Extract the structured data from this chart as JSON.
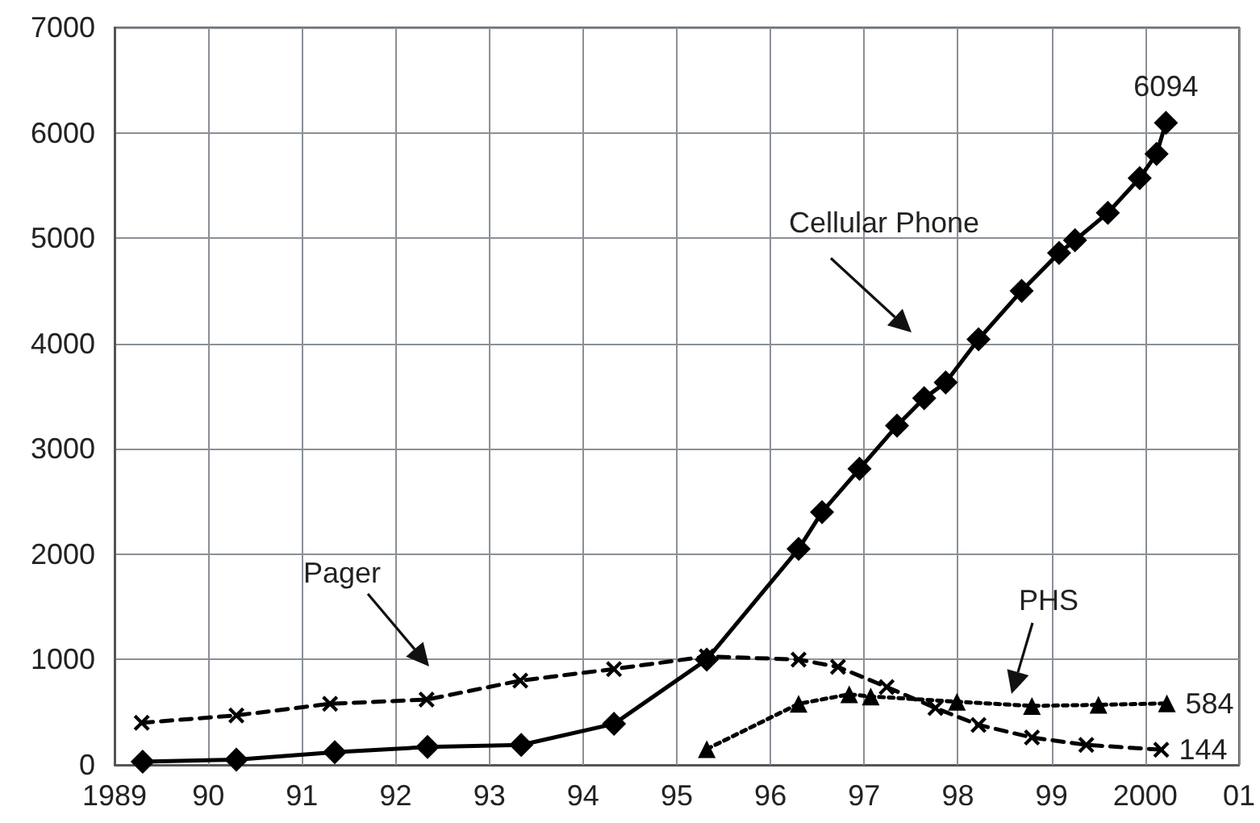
{
  "chart_data": {
    "type": "line",
    "xlim": [
      1989,
      2001
    ],
    "xticks": [
      {
        "value": 1989,
        "label": "1989"
      },
      {
        "value": 1990,
        "label": "90"
      },
      {
        "value": 1991,
        "label": "91"
      },
      {
        "value": 1992,
        "label": "92"
      },
      {
        "value": 1993,
        "label": "93"
      },
      {
        "value": 1994,
        "label": "94"
      },
      {
        "value": 1995,
        "label": "95"
      },
      {
        "value": 1996,
        "label": "96"
      },
      {
        "value": 1997,
        "label": "97"
      },
      {
        "value": 1998,
        "label": "98"
      },
      {
        "value": 1999,
        "label": "99"
      },
      {
        "value": 2000,
        "label": "2000"
      },
      {
        "value": 2001,
        "label": "01"
      }
    ],
    "ylim": [
      0,
      7000
    ],
    "yticks": [
      0,
      1000,
      2000,
      3000,
      4000,
      5000,
      6000,
      7000
    ],
    "grid": true,
    "series": [
      {
        "name": "Cellular Phone",
        "color": "#000000",
        "marker": "diamond",
        "line_style": "solid",
        "x": [
          1989.3,
          1990.3,
          1991.35,
          1992.34,
          1993.34,
          1994.33,
          1995.32,
          1996.3,
          1996.55,
          1996.95,
          1997.35,
          1997.64,
          1997.87,
          1998.22,
          1998.68,
          1999.08,
          1999.25,
          1999.6,
          1999.94,
          2000.12,
          2000.22
        ],
        "values": [
          30,
          50,
          120,
          170,
          190,
          390,
          1000,
          2050,
          2400,
          2810,
          3220,
          3480,
          3630,
          4040,
          4500,
          4860,
          4980,
          5240,
          5570,
          5800,
          6094
        ],
        "value_labels": [
          null,
          null,
          null,
          null,
          null,
          null,
          null,
          null,
          null,
          null,
          null,
          null,
          null,
          null,
          null,
          null,
          null,
          null,
          null,
          null,
          "6094"
        ]
      },
      {
        "name": "Pager",
        "color": "#000000",
        "marker": "cross",
        "line_style": "dashed",
        "x": [
          1989.29,
          1990.3,
          1991.3,
          1992.33,
          1993.33,
          1994.33,
          1995.32,
          1996.3,
          1996.72,
          1997.24,
          1997.76,
          1998.22,
          1998.79,
          1999.37,
          2000.17
        ],
        "values": [
          400,
          470,
          580,
          620,
          800,
          910,
          1030,
          1000,
          930,
          740,
          540,
          380,
          260,
          190,
          144
        ],
        "value_labels": [
          null,
          null,
          null,
          null,
          null,
          null,
          null,
          null,
          null,
          null,
          null,
          null,
          null,
          null,
          "144"
        ]
      },
      {
        "name": "PHS",
        "color": "#000000",
        "marker": "triangle",
        "line_style": "dotted",
        "x": [
          1995.32,
          1996.3,
          1996.84,
          1997.07,
          1997.99,
          1998.79,
          1999.5,
          2000.23
        ],
        "values": [
          150,
          580,
          670,
          650,
          600,
          560,
          570,
          584
        ],
        "value_labels": [
          null,
          null,
          null,
          null,
          null,
          null,
          null,
          "584"
        ]
      }
    ]
  }
}
